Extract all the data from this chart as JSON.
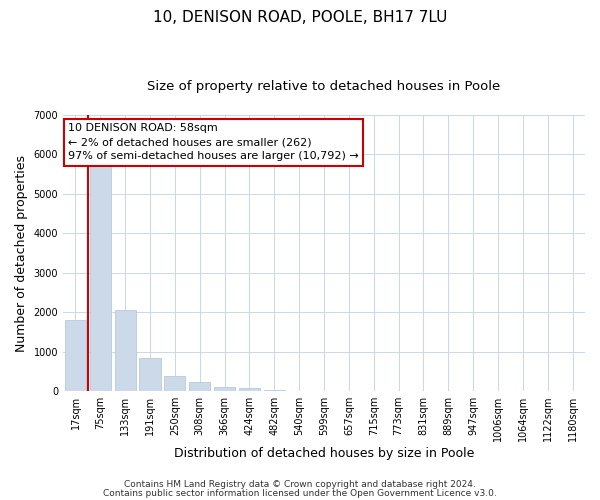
{
  "title": "10, DENISON ROAD, POOLE, BH17 7LU",
  "subtitle": "Size of property relative to detached houses in Poole",
  "xlabel": "Distribution of detached houses by size in Poole",
  "ylabel": "Number of detached properties",
  "bar_labels": [
    "17sqm",
    "75sqm",
    "133sqm",
    "191sqm",
    "250sqm",
    "308sqm",
    "366sqm",
    "424sqm",
    "482sqm",
    "540sqm",
    "599sqm",
    "657sqm",
    "715sqm",
    "773sqm",
    "831sqm",
    "889sqm",
    "947sqm",
    "1006sqm",
    "1064sqm",
    "1122sqm",
    "1180sqm"
  ],
  "bar_values": [
    1800,
    5750,
    2050,
    830,
    370,
    240,
    110,
    70,
    30,
    10,
    5,
    0,
    0,
    0,
    0,
    0,
    0,
    0,
    0,
    0,
    0
  ],
  "bar_color": "#ccd9e8",
  "bar_edge_color": "#aec4d8",
  "ylim": [
    0,
    7000
  ],
  "yticks": [
    0,
    1000,
    2000,
    3000,
    4000,
    5000,
    6000,
    7000
  ],
  "marker_color": "#cc0000",
  "annotation_text": "10 DENISON ROAD: 58sqm\n← 2% of detached houses are smaller (262)\n97% of semi-detached houses are larger (10,792) →",
  "annotation_box_color": "#ffffff",
  "annotation_border_color": "#cc0000",
  "footer_line1": "Contains HM Land Registry data © Crown copyright and database right 2024.",
  "footer_line2": "Contains public sector information licensed under the Open Government Licence v3.0.",
  "background_color": "#ffffff",
  "grid_color": "#c8d8e8",
  "title_fontsize": 11,
  "subtitle_fontsize": 9.5,
  "axis_label_fontsize": 9,
  "tick_fontsize": 7,
  "annotation_fontsize": 8,
  "footer_fontsize": 6.5
}
